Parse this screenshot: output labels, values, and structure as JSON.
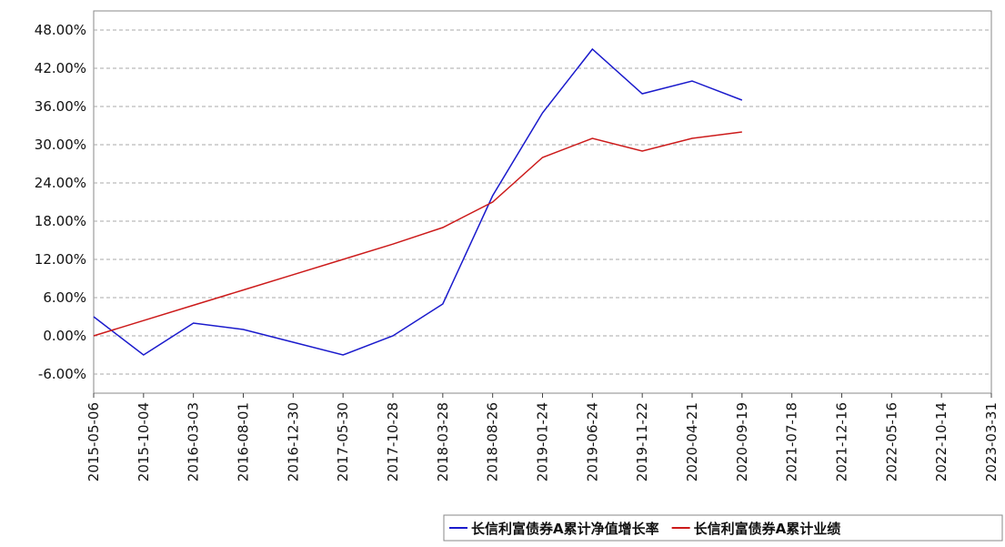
{
  "chart_data": {
    "type": "line",
    "categories": [
      "2015-05-06",
      "2015-10-04",
      "2016-03-03",
      "2016-08-01",
      "2016-12-30",
      "2017-05-30",
      "2017-10-28",
      "2018-03-28",
      "2018-08-26",
      "2019-01-24",
      "2019-06-24",
      "2019-11-22",
      "2020-04-21",
      "2020-09-19",
      "2021-07-18",
      "2021-12-16",
      "2022-05-16",
      "2022-10-14",
      "2023-03-31"
    ],
    "series": [
      {
        "name": "长信利富债券A累计净值增长率",
        "color": "#1a1acc",
        "values": [
          3,
          -3,
          2,
          1,
          -1,
          -3,
          0,
          5,
          22,
          35,
          45,
          38,
          40,
          37,
          null,
          null,
          null,
          null,
          null
        ]
      },
      {
        "name": "长信利富债券A累计业绩",
        "color": "#cc1a1a",
        "values": [
          0,
          2.4,
          4.8,
          7.2,
          9.6,
          12,
          14.4,
          17,
          21,
          28,
          31,
          29,
          31,
          32,
          null,
          null,
          null,
          null,
          null
        ]
      }
    ],
    "ylim": [
      -9,
      51
    ],
    "yticks": [
      {
        "value": -6,
        "label": "-6.00%"
      },
      {
        "value": 0,
        "label": "0.00%"
      },
      {
        "value": 6,
        "label": "6.00%"
      },
      {
        "value": 12,
        "label": "12.00%"
      },
      {
        "value": 18,
        "label": "18.00%"
      },
      {
        "value": 24,
        "label": "24.00%"
      },
      {
        "value": 30,
        "label": "30.00%"
      },
      {
        "value": 36,
        "label": "36.00%"
      },
      {
        "value": 42,
        "label": "42.00%"
      },
      {
        "value": 48,
        "label": "48.00%"
      }
    ],
    "grid": true
  }
}
